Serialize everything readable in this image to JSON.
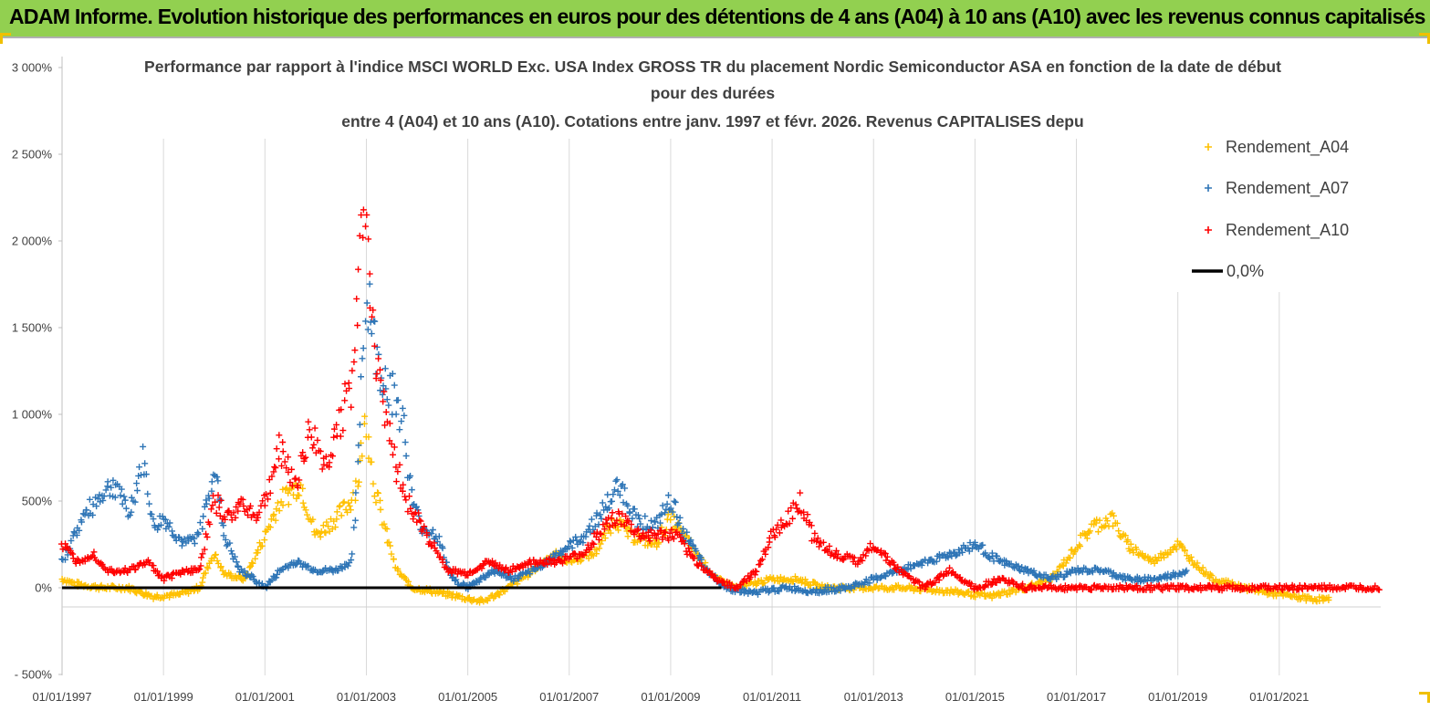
{
  "header": {
    "title": "ADAM Informe. Evolution historique des performances en euros pour des détentions de 4 ans (A04) à 10 ans (A10) avec les revenus connus capitalisés",
    "bg_color": "#92d050"
  },
  "chart_data": {
    "type": "scatter",
    "title_lines": [
      "Performance par rapport à l'indice MSCI WORLD Exc. USA Index GROSS TR  du placement Nordic Semiconductor ASA en fonction de la date de début",
      "pour des durées",
      "entre 4 (A04) et 10 ans (A10). Cotations entre janv. 1997 et févr. 2026. Revenus CAPITALISES depu"
    ],
    "ylim": [
      -500,
      3000
    ],
    "y_ticks": [
      -500,
      0,
      500,
      1000,
      1500,
      2000,
      2500,
      3000
    ],
    "y_tick_labels": [
      "- 500%",
      "0%",
      "500%",
      "1 000%",
      "1 500%",
      "2 000%",
      "2 500%",
      "3 000%"
    ],
    "xlim": [
      1997.0,
      2023.0
    ],
    "x_ticks": [
      1997,
      1999,
      2001,
      2003,
      2005,
      2007,
      2009,
      2011,
      2013,
      2015,
      2017,
      2019,
      2021
    ],
    "x_tick_labels": [
      "01/01/1997",
      "01/01/1999",
      "01/01/2001",
      "01/01/2003",
      "01/01/2005",
      "01/01/2007",
      "01/01/2009",
      "01/01/2011",
      "01/01/2013",
      "01/01/2015",
      "01/01/2017",
      "01/01/2019",
      "01/01/2021"
    ],
    "grid": "vertical",
    "legend_position": "top-right",
    "series": [
      {
        "name": "Rendement_A04",
        "color": "#ffc000",
        "points": [
          [
            1997.0,
            50
          ],
          [
            1997.3,
            20
          ],
          [
            1997.8,
            0
          ],
          [
            1998.3,
            0
          ],
          [
            1998.8,
            -50
          ],
          [
            1999.3,
            -40
          ],
          [
            1999.7,
            0
          ],
          [
            2000.0,
            200
          ],
          [
            2000.2,
            80
          ],
          [
            2000.6,
            50
          ],
          [
            2001.0,
            300
          ],
          [
            2001.3,
            500
          ],
          [
            2001.7,
            600
          ],
          [
            2002.0,
            300
          ],
          [
            2002.4,
            400
          ],
          [
            2002.7,
            500
          ],
          [
            2002.85,
            650
          ],
          [
            2003.0,
            1000
          ],
          [
            2003.15,
            600
          ],
          [
            2003.4,
            300
          ],
          [
            2003.6,
            100
          ],
          [
            2003.9,
            0
          ],
          [
            2004.3,
            -20
          ],
          [
            2004.8,
            -50
          ],
          [
            2005.3,
            -80
          ],
          [
            2005.8,
            0
          ],
          [
            2006.3,
            100
          ],
          [
            2006.7,
            200
          ],
          [
            2007.0,
            150
          ],
          [
            2007.5,
            200
          ],
          [
            2007.9,
            400
          ],
          [
            2008.2,
            300
          ],
          [
            2008.7,
            250
          ],
          [
            2009.0,
            400
          ],
          [
            2009.5,
            200
          ],
          [
            2009.9,
            50
          ],
          [
            2010.3,
            0
          ],
          [
            2011.0,
            50
          ],
          [
            2011.5,
            50
          ],
          [
            2012.0,
            0
          ],
          [
            2012.7,
            0
          ],
          [
            2013.5,
            0
          ],
          [
            2014.5,
            -20
          ],
          [
            2015.3,
            -50
          ],
          [
            2016.0,
            0
          ],
          [
            2016.5,
            50
          ],
          [
            2016.9,
            200
          ],
          [
            2017.3,
            350
          ],
          [
            2017.7,
            400
          ],
          [
            2018.0,
            250
          ],
          [
            2018.5,
            150
          ],
          [
            2019.0,
            250
          ],
          [
            2019.3,
            150
          ],
          [
            2019.7,
            50
          ],
          [
            2020.3,
            0
          ],
          [
            2020.8,
            -30
          ],
          [
            2021.5,
            -60
          ],
          [
            2022.0,
            -70
          ]
        ]
      },
      {
        "name": "Rendement_A07",
        "color": "#2e75b6",
        "points": [
          [
            1997.0,
            150
          ],
          [
            1997.4,
            400
          ],
          [
            1997.8,
            550
          ],
          [
            1998.1,
            600
          ],
          [
            1998.3,
            400
          ],
          [
            1998.6,
            750
          ],
          [
            1998.8,
            350
          ],
          [
            1999.0,
            400
          ],
          [
            1999.4,
            250
          ],
          [
            1999.7,
            300
          ],
          [
            2000.0,
            700
          ],
          [
            2000.2,
            300
          ],
          [
            2000.5,
            100
          ],
          [
            2000.8,
            50
          ],
          [
            2001.0,
            0
          ],
          [
            2001.3,
            100
          ],
          [
            2001.6,
            150
          ],
          [
            2002.0,
            100
          ],
          [
            2002.4,
            100
          ],
          [
            2002.7,
            150
          ],
          [
            2002.8,
            500
          ],
          [
            2002.95,
            1500
          ],
          [
            2003.05,
            1700
          ],
          [
            2003.2,
            1300
          ],
          [
            2003.4,
            1200
          ],
          [
            2003.7,
            1000
          ],
          [
            2003.9,
            500
          ],
          [
            2004.1,
            350
          ],
          [
            2004.4,
            300
          ],
          [
            2004.7,
            50
          ],
          [
            2005.0,
            0
          ],
          [
            2005.5,
            100
          ],
          [
            2005.9,
            50
          ],
          [
            2006.3,
            100
          ],
          [
            2006.8,
            200
          ],
          [
            2007.3,
            300
          ],
          [
            2007.8,
            500
          ],
          [
            2008.0,
            600
          ],
          [
            2008.3,
            400
          ],
          [
            2008.7,
            350
          ],
          [
            2009.0,
            500
          ],
          [
            2009.3,
            300
          ],
          [
            2009.7,
            100
          ],
          [
            2010.1,
            0
          ],
          [
            2010.6,
            -30
          ],
          [
            2011.3,
            0
          ],
          [
            2011.8,
            -20
          ],
          [
            2012.5,
            0
          ],
          [
            2013.0,
            50
          ],
          [
            2013.5,
            100
          ],
          [
            2014.0,
            150
          ],
          [
            2014.6,
            200
          ],
          [
            2015.0,
            250
          ],
          [
            2015.5,
            150
          ],
          [
            2016.0,
            100
          ],
          [
            2016.5,
            50
          ],
          [
            2017.0,
            100
          ],
          [
            2017.5,
            100
          ],
          [
            2018.0,
            50
          ],
          [
            2018.6,
            50
          ],
          [
            2019.0,
            80
          ],
          [
            2019.2,
            100
          ]
        ]
      },
      {
        "name": "Rendement_A10",
        "color": "#ff0000",
        "points": [
          [
            1997.0,
            250
          ],
          [
            1997.3,
            150
          ],
          [
            1997.6,
            200
          ],
          [
            1997.9,
            100
          ],
          [
            1998.3,
            100
          ],
          [
            1998.7,
            150
          ],
          [
            1999.0,
            50
          ],
          [
            1999.4,
            100
          ],
          [
            1999.7,
            100
          ],
          [
            2000.0,
            500
          ],
          [
            2000.3,
            400
          ],
          [
            2000.6,
            500
          ],
          [
            2000.8,
            400
          ],
          [
            2001.0,
            500
          ],
          [
            2001.3,
            800
          ],
          [
            2001.6,
            600
          ],
          [
            2001.9,
            900
          ],
          [
            2002.2,
            700
          ],
          [
            2002.5,
            1000
          ],
          [
            2002.75,
            1200
          ],
          [
            2002.85,
            1800
          ],
          [
            2003.0,
            2400
          ],
          [
            2003.1,
            1500
          ],
          [
            2003.3,
            1200
          ],
          [
            2003.5,
            800
          ],
          [
            2003.8,
            500
          ],
          [
            2004.2,
            300
          ],
          [
            2004.6,
            100
          ],
          [
            2005.0,
            80
          ],
          [
            2005.4,
            150
          ],
          [
            2005.8,
            100
          ],
          [
            2006.3,
            150
          ],
          [
            2006.8,
            150
          ],
          [
            2007.3,
            200
          ],
          [
            2007.8,
            400
          ],
          [
            2008.0,
            400
          ],
          [
            2008.4,
            300
          ],
          [
            2008.8,
            300
          ],
          [
            2009.1,
            300
          ],
          [
            2009.5,
            150
          ],
          [
            2009.9,
            50
          ],
          [
            2010.3,
            0
          ],
          [
            2010.7,
            100
          ],
          [
            2011.0,
            300
          ],
          [
            2011.3,
            400
          ],
          [
            2011.55,
            500
          ],
          [
            2011.8,
            300
          ],
          [
            2012.2,
            200
          ],
          [
            2012.7,
            150
          ],
          [
            2013.0,
            250
          ],
          [
            2013.5,
            100
          ],
          [
            2014.0,
            0
          ],
          [
            2014.5,
            100
          ],
          [
            2015.0,
            0
          ],
          [
            2015.5,
            50
          ],
          [
            2016.0,
            0
          ],
          [
            2016.5,
            0
          ],
          [
            2017.5,
            0
          ],
          [
            2019.0,
            0
          ],
          [
            2020.0,
            0
          ],
          [
            2021.0,
            0
          ],
          [
            2022.0,
            0
          ],
          [
            2023.0,
            0
          ]
        ]
      },
      {
        "name": "0,0%",
        "color": "#000000",
        "points": [
          [
            1997.0,
            0
          ],
          [
            2010.0,
            0
          ]
        ]
      }
    ]
  }
}
